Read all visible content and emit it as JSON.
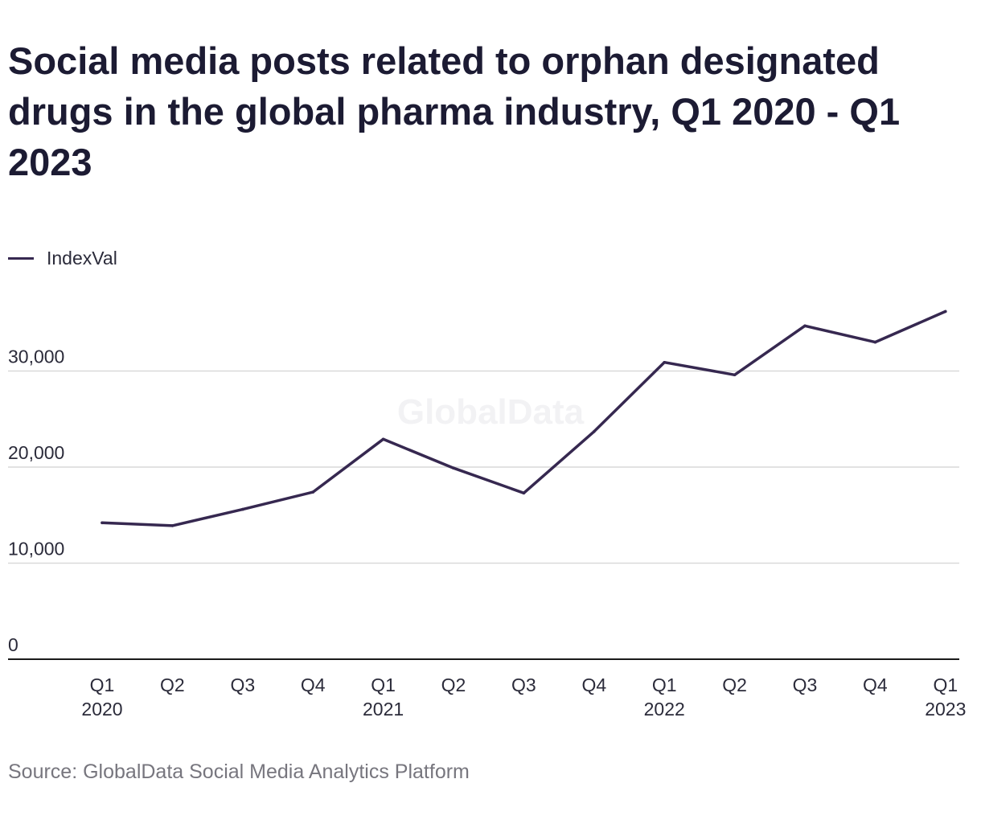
{
  "chart_data": {
    "type": "line",
    "title": "Social media posts related to orphan designated drugs in the global pharma industry, Q1 2020 - Q1 2023",
    "xlabel": "",
    "ylabel": "",
    "categories": [
      [
        "Q1",
        "2020"
      ],
      [
        "Q2",
        ""
      ],
      [
        "Q3",
        ""
      ],
      [
        "Q4",
        ""
      ],
      [
        "Q1",
        "2021"
      ],
      [
        "Q2",
        ""
      ],
      [
        "Q3",
        ""
      ],
      [
        "Q4",
        ""
      ],
      [
        "Q1",
        "2022"
      ],
      [
        "Q2",
        ""
      ],
      [
        "Q3",
        ""
      ],
      [
        "Q4",
        ""
      ],
      [
        "Q1",
        "2023"
      ]
    ],
    "series": [
      {
        "name": "IndexVal",
        "color": "#362850",
        "values": [
          14200,
          13900,
          15600,
          17400,
          22900,
          19900,
          17300,
          23700,
          30900,
          29600,
          34700,
          33000,
          36200
        ]
      }
    ],
    "ylim": [
      0,
      36200
    ],
    "yticks": [
      0,
      10000,
      20000,
      30000
    ],
    "ytick_labels": [
      "0",
      "10,000",
      "20,000",
      "30,000"
    ],
    "grid": true,
    "legend": "top-left",
    "watermark": "GlobalData",
    "source": "Source: GlobalData Social Media Analytics Platform",
    "colors": {
      "line": "#362850",
      "grid": "#d9d9d9",
      "axis": "#1a1a1a",
      "text": "#1c1b33",
      "muted": "#77767e",
      "watermark": "#f2f2f4"
    }
  }
}
